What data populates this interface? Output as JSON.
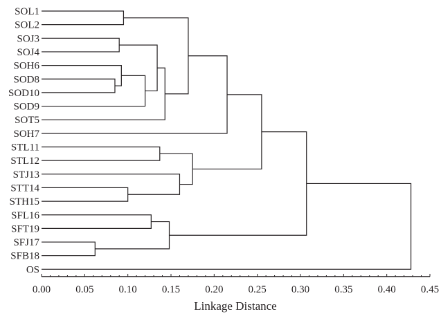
{
  "chart_data": {
    "type": "dendrogram",
    "orientation": "horizontal",
    "xlabel": "Linkage Distance",
    "xlim": [
      0.0,
      0.45
    ],
    "x_ticks": [
      "0.00",
      "0.05",
      "0.10",
      "0.15",
      "0.20",
      "0.25",
      "0.30",
      "0.35",
      "0.40",
      "0.45"
    ],
    "x_tick_values": [
      0.0,
      0.05,
      0.1,
      0.15,
      0.2,
      0.25,
      0.3,
      0.35,
      0.4,
      0.45
    ],
    "minor_ticks_per_major": 5,
    "leaves": [
      "SOL1",
      "SOL2",
      "SOJ3",
      "SOJ4",
      "SOH6",
      "SOD8",
      "SOD10",
      "SOD9",
      "SOT5",
      "SOH7",
      "STL11",
      "STL12",
      "STJ13",
      "STT14",
      "STH15",
      "SFL16",
      "SFT19",
      "SFJ17",
      "SFB18",
      "OS"
    ],
    "merges": [
      {
        "id": "m1",
        "left": "SOL1",
        "right": "SOL2",
        "height": 0.095
      },
      {
        "id": "m2",
        "left": "SOJ3",
        "right": "SOJ4",
        "height": 0.09
      },
      {
        "id": "m3",
        "left": "SOD8",
        "right": "SOD10",
        "height": 0.085
      },
      {
        "id": "m4",
        "left": "SOH6",
        "right": "m3",
        "height": 0.0925
      },
      {
        "id": "m5",
        "left": "m4",
        "right": "SOD9",
        "height": 0.12
      },
      {
        "id": "m6",
        "left": "m2",
        "right": "m5",
        "height": 0.134
      },
      {
        "id": "m7",
        "left": "m6",
        "right": "SOT5",
        "height": 0.143
      },
      {
        "id": "m8",
        "left": "m1",
        "right": "m7",
        "height": 0.17
      },
      {
        "id": "m9",
        "left": "m8",
        "right": "SOH7",
        "height": 0.215
      },
      {
        "id": "m10",
        "left": "STL11",
        "right": "STL12",
        "height": 0.137
      },
      {
        "id": "m11",
        "left": "STT14",
        "right": "STH15",
        "height": 0.1
      },
      {
        "id": "m12",
        "left": "STJ13",
        "right": "m11",
        "height": 0.16
      },
      {
        "id": "m13",
        "left": "m10",
        "right": "m12",
        "height": 0.175
      },
      {
        "id": "m14",
        "left": "m9",
        "right": "m13",
        "height": 0.255
      },
      {
        "id": "m15",
        "left": "SFL16",
        "right": "SFT19",
        "height": 0.127
      },
      {
        "id": "m16",
        "left": "SFJ17",
        "right": "SFB18",
        "height": 0.062
      },
      {
        "id": "m17",
        "left": "m15",
        "right": "m16",
        "height": 0.148
      },
      {
        "id": "m18",
        "left": "m14",
        "right": "m17",
        "height": 0.307
      },
      {
        "id": "m19",
        "left": "m18",
        "right": "OS",
        "height": 0.428
      }
    ]
  }
}
